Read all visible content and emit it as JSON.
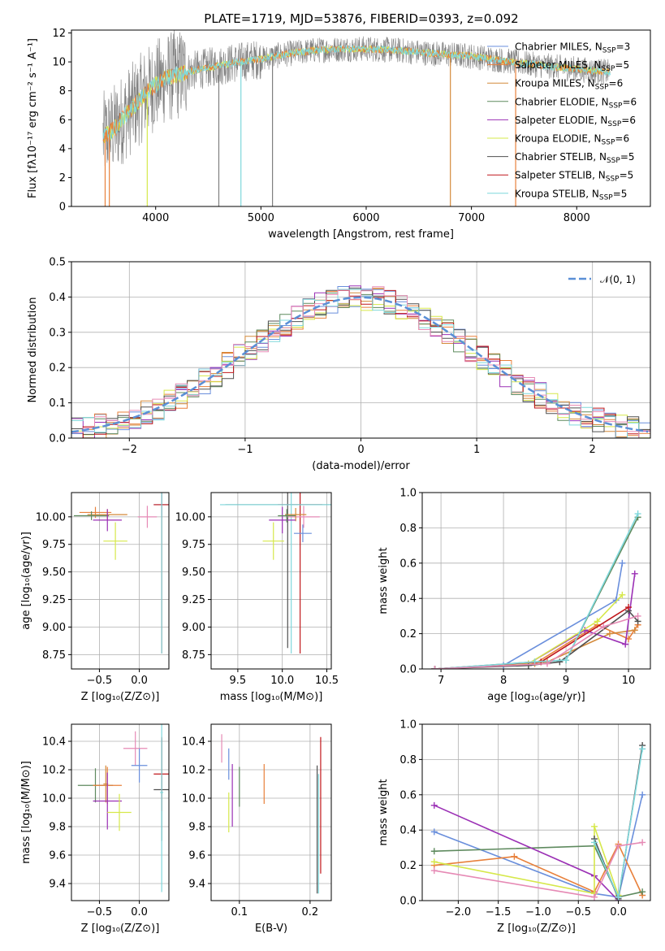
{
  "title": "PLATE=1719, MJD=53876, FIBERID=0393, z=0.092",
  "colors": {
    "chabrier_miles": "#6a8fdc",
    "salpeter_miles": "#e8803b",
    "kroupa_miles": "#d48a3a",
    "chabrier_elodie": "#5e8a5e",
    "salpeter_elodie": "#9b30b5",
    "kroupa_elodie": "#d6e84a",
    "chabrier_stelib": "#505050",
    "salpeter_stelib": "#c0171b",
    "kroupa_stelib": "#7fd8dc",
    "pink": "#e68ab5",
    "data": "#808080"
  },
  "legend": [
    {
      "label": "Chabrier MILES, N",
      "sub": "SSP",
      "tail": "=3",
      "color": "#6a8fdc"
    },
    {
      "label": "Salpeter MILES, N",
      "sub": "SSP",
      "tail": "=5",
      "color": "#e8803b"
    },
    {
      "label": "Kroupa MILES, N",
      "sub": "SSP",
      "tail": "=6",
      "color": "#d48a3a"
    },
    {
      "label": "Chabrier ELODIE, N",
      "sub": "SSP",
      "tail": "=6",
      "color": "#5e8a5e"
    },
    {
      "label": "Salpeter ELODIE, N",
      "sub": "SSP",
      "tail": "=6",
      "color": "#9b30b5"
    },
    {
      "label": "Kroupa ELODIE, N",
      "sub": "SSP",
      "tail": "=6",
      "color": "#d6e84a"
    },
    {
      "label": "Chabrier STELIB, N",
      "sub": "SSP",
      "tail": "=5",
      "color": "#505050"
    },
    {
      "label": "Salpeter STELIB, N",
      "sub": "SSP",
      "tail": "=5",
      "color": "#c0171b"
    },
    {
      "label": "Kroupa STELIB, N",
      "sub": "SSP",
      "tail": "=5",
      "color": "#7fd8dc"
    }
  ],
  "chart_data": [
    {
      "type": "line",
      "xlabel": "wavelength [Angstrom, rest frame]",
      "ylabel": "Flux [fλ10⁻¹⁷ erg cm⁻² s⁻¹ A⁻¹]",
      "xlim": [
        3200,
        8700
      ],
      "ylim": [
        0,
        12.2
      ],
      "xticks": [
        4000,
        5000,
        6000,
        7000,
        8000
      ],
      "yticks": [
        0,
        2,
        4,
        6,
        8,
        10,
        12
      ],
      "continuum": [
        [
          3500,
          4.8
        ],
        [
          3600,
          5.3
        ],
        [
          3700,
          6.2
        ],
        [
          3800,
          7.0
        ],
        [
          3900,
          7.8
        ],
        [
          4000,
          8.4
        ],
        [
          4100,
          8.9
        ],
        [
          4300,
          9.3
        ],
        [
          4500,
          9.6
        ],
        [
          4800,
          10.0
        ],
        [
          5000,
          10.2
        ],
        [
          5200,
          10.5
        ],
        [
          5500,
          10.8
        ],
        [
          5800,
          10.9
        ],
        [
          6000,
          10.9
        ],
        [
          6300,
          10.8
        ],
        [
          6600,
          10.6
        ],
        [
          7000,
          10.4
        ],
        [
          7300,
          10.1
        ],
        [
          7600,
          9.8
        ],
        [
          8000,
          9.5
        ],
        [
          8300,
          9.3
        ]
      ],
      "vertical_spikes": [
        3520,
        3560,
        3920,
        4600,
        4810,
        5110,
        6800,
        7420
      ]
    },
    {
      "type": "histogram",
      "xlabel": "(data-model)/error",
      "ylabel": "Normed distribution",
      "xlim": [
        -2.5,
        2.5
      ],
      "ylim": [
        0,
        0.5
      ],
      "xticks": [
        -2,
        -1,
        0,
        1,
        2
      ],
      "yticks": [
        0.0,
        0.1,
        0.2,
        0.3,
        0.4,
        0.5
      ],
      "legend": "𝒩(0, 1)",
      "gaussian": {
        "mean": 0,
        "sigma": 1
      },
      "bin_width": 0.1
    },
    {
      "type": "scatter",
      "xlabel": "Z [log₁₀(Z/Z⊙)]",
      "ylabel": "age  [log₁₀(age/yr)]",
      "xlim": [
        -0.85,
        0.37
      ],
      "ylim": [
        8.62,
        10.22
      ],
      "xticks": [
        -0.5,
        0.0
      ],
      "yticks": [
        8.75,
        9.0,
        9.25,
        9.5,
        9.75,
        10.0
      ],
      "points": [
        {
          "x": 0.28,
          "y": 10.11,
          "xerr": 0.1,
          "yerr": 0.1,
          "color": "#6a8fdc"
        },
        {
          "x": -0.55,
          "y": 10.04,
          "xerr": 0.2,
          "yerr": 0.05,
          "color": "#e8803b"
        },
        {
          "x": -0.4,
          "y": 10.02,
          "xerr": 0.25,
          "yerr": 0.05,
          "color": "#d48a3a"
        },
        {
          "x": -0.6,
          "y": 10.01,
          "xerr": 0.22,
          "yerr": 0.04,
          "color": "#5e8a5e"
        },
        {
          "x": -0.4,
          "y": 9.97,
          "xerr": 0.18,
          "yerr": 0.1,
          "color": "#9b30b5"
        },
        {
          "x": -0.3,
          "y": 9.78,
          "xerr": 0.15,
          "yerr": 0.17,
          "color": "#d6e84a"
        },
        {
          "x": 0.28,
          "y": 10.11,
          "xerr": 0.01,
          "yerr": 0.0,
          "color": "#505050"
        },
        {
          "x": 0.28,
          "y": 10.11,
          "xerr": 0.1,
          "yerr": 1.35,
          "color": "#c0171b"
        },
        {
          "x": 0.28,
          "y": 10.11,
          "xerr": 0.0,
          "yerr": 1.35,
          "color": "#7fd8dc"
        },
        {
          "x": 0.1,
          "y": 10.0,
          "xerr": 0.12,
          "yerr": 0.1,
          "color": "#e68ab5"
        }
      ]
    },
    {
      "type": "scatter",
      "xlabel": "mass [log₁₀(M/M⊙)]",
      "ylabel": "",
      "xlim": [
        9.2,
        10.55
      ],
      "ylim": [
        8.62,
        10.22
      ],
      "xticks": [
        9.5,
        10.0,
        10.5
      ],
      "yticks": [
        8.75,
        9.0,
        9.25,
        9.5,
        9.75,
        10.0
      ],
      "points": [
        {
          "x": 10.06,
          "y": 10.11,
          "xerr": 0.7,
          "yerr": 1.3,
          "color": "#505050"
        },
        {
          "x": 10.2,
          "y": 10.11,
          "xerr": 0.25,
          "yerr": 1.35,
          "color": "#c0171b"
        },
        {
          "x": 10.1,
          "y": 10.11,
          "xerr": 0.8,
          "yerr": 1.35,
          "color": "#7fd8dc"
        },
        {
          "x": 10.24,
          "y": 10.0,
          "xerr": 0.18,
          "yerr": 0.1,
          "color": "#e68ab5"
        },
        {
          "x": 10.15,
          "y": 10.02,
          "xerr": 0.12,
          "yerr": 0.06,
          "color": "#d48a3a"
        },
        {
          "x": 10.23,
          "y": 9.85,
          "xerr": 0.1,
          "yerr": 0.08,
          "color": "#6a8fdc"
        },
        {
          "x": 10.0,
          "y": 9.97,
          "xerr": 0.15,
          "yerr": 0.12,
          "color": "#9b30b5"
        },
        {
          "x": 9.9,
          "y": 9.78,
          "xerr": 0.12,
          "yerr": 0.17,
          "color": "#d6e84a"
        },
        {
          "x": 10.05,
          "y": 10.01,
          "xerr": 0.1,
          "yerr": 0.06,
          "color": "#5e8a5e"
        }
      ]
    },
    {
      "type": "line",
      "xlabel": "age  [log₁₀(age/yr)]",
      "ylabel": "mass weight",
      "xlim": [
        6.7,
        10.35
      ],
      "ylim": [
        0,
        1
      ],
      "xticks": [
        7,
        8,
        9,
        10
      ],
      "yticks": [
        0.0,
        0.2,
        0.4,
        0.6,
        0.8,
        1.0
      ],
      "series": [
        {
          "color": "#6a8fdc",
          "points": [
            [
              6.9,
              0.0
            ],
            [
              8.0,
              0.02
            ],
            [
              9.8,
              0.39
            ],
            [
              9.9,
              0.6
            ]
          ]
        },
        {
          "color": "#e8803b",
          "points": [
            [
              6.9,
              0.0
            ],
            [
              8.5,
              0.03
            ],
            [
              9.5,
              0.25
            ],
            [
              10.0,
              0.17
            ],
            [
              10.15,
              0.25
            ]
          ]
        },
        {
          "color": "#d48a3a",
          "points": [
            [
              6.9,
              0.0
            ],
            [
              8.7,
              0.04
            ],
            [
              9.7,
              0.2
            ],
            [
              10.1,
              0.22
            ]
          ]
        },
        {
          "color": "#5e8a5e",
          "points": [
            [
              6.9,
              0.0
            ],
            [
              8.5,
              0.04
            ],
            [
              9.0,
              0.05
            ],
            [
              10.15,
              0.86
            ]
          ]
        },
        {
          "color": "#9b30b5",
          "points": [
            [
              6.9,
              0.0
            ],
            [
              8.4,
              0.03
            ],
            [
              9.3,
              0.22
            ],
            [
              9.95,
              0.14
            ],
            [
              10.1,
              0.54
            ]
          ]
        },
        {
          "color": "#d6e84a",
          "points": [
            [
              6.9,
              0.0
            ],
            [
              8.4,
              0.03
            ],
            [
              9.5,
              0.27
            ],
            [
              9.9,
              0.42
            ]
          ]
        },
        {
          "color": "#505050",
          "points": [
            [
              6.9,
              0.0
            ],
            [
              8.4,
              0.02
            ],
            [
              8.9,
              0.04
            ],
            [
              10.0,
              0.33
            ],
            [
              10.15,
              0.27
            ]
          ]
        },
        {
          "color": "#c0171b",
          "points": [
            [
              6.9,
              0.0
            ],
            [
              8.6,
              0.04
            ],
            [
              10.0,
              0.35
            ]
          ]
        },
        {
          "color": "#7fd8dc",
          "points": [
            [
              6.9,
              0.0
            ],
            [
              8.5,
              0.04
            ],
            [
              9.0,
              0.05
            ],
            [
              10.15,
              0.88
            ]
          ]
        },
        {
          "color": "#e68ab5",
          "points": [
            [
              6.9,
              0.0
            ],
            [
              8.7,
              0.03
            ],
            [
              9.6,
              0.24
            ],
            [
              10.15,
              0.3
            ]
          ]
        }
      ]
    },
    {
      "type": "scatter",
      "xlabel": "Z [log₁₀(Z/Z⊙)]",
      "ylabel": "mass [log₁₀(M/M⊙)]",
      "xlim": [
        -0.85,
        0.37
      ],
      "ylim": [
        9.28,
        10.52
      ],
      "xticks": [
        -0.5,
        0.0
      ],
      "yticks": [
        9.4,
        9.6,
        9.8,
        10.0,
        10.2,
        10.4
      ],
      "points": [
        {
          "x": 0.28,
          "y": 10.06,
          "xerr": 0.1,
          "yerr": 0.36,
          "color": "#505050"
        },
        {
          "x": 0.28,
          "y": 10.17,
          "xerr": 0.1,
          "yerr": 0.26,
          "color": "#c0171b"
        },
        {
          "x": 0.28,
          "y": 10.04,
          "xerr": 0.02,
          "yerr": 0.7,
          "color": "#7fd8dc"
        },
        {
          "x": -0.55,
          "y": 10.09,
          "xerr": 0.22,
          "yerr": 0.12,
          "color": "#5e8a5e"
        },
        {
          "x": -0.4,
          "y": 10.09,
          "xerr": 0.18,
          "yerr": 0.13,
          "color": "#e8803b"
        },
        {
          "x": -0.42,
          "y": 10.1,
          "xerr": 0.03,
          "yerr": 0.13,
          "color": "#d48a3a"
        },
        {
          "x": -0.4,
          "y": 9.98,
          "xerr": 0.18,
          "yerr": 0.2,
          "color": "#9b30b5"
        },
        {
          "x": -0.25,
          "y": 9.9,
          "xerr": 0.15,
          "yerr": 0.13,
          "color": "#d6e84a"
        },
        {
          "x": -0.05,
          "y": 10.35,
          "xerr": 0.15,
          "yerr": 0.12,
          "color": "#e68ab5"
        },
        {
          "x": 0.0,
          "y": 10.23,
          "xerr": 0.1,
          "yerr": 0.12,
          "color": "#6a8fdc"
        }
      ]
    },
    {
      "type": "scatter",
      "xlabel": "E(B-V)",
      "ylabel": "",
      "xlim": [
        0.06,
        0.23
      ],
      "ylim": [
        9.28,
        10.52
      ],
      "xticks": [
        0.1,
        0.2
      ],
      "yticks": [
        9.4,
        9.6,
        9.8,
        10.0,
        10.2,
        10.4
      ],
      "points": [
        {
          "x": 0.075,
          "y": 10.35,
          "yerr": 0.1,
          "color": "#e68ab5"
        },
        {
          "x": 0.085,
          "y": 10.24,
          "yerr": 0.11,
          "color": "#6a8fdc"
        },
        {
          "x": 0.085,
          "y": 9.9,
          "yerr": 0.14,
          "color": "#d6e84a"
        },
        {
          "x": 0.09,
          "y": 10.02,
          "yerr": 0.22,
          "color": "#9b30b5"
        },
        {
          "x": 0.1,
          "y": 10.08,
          "yerr": 0.14,
          "color": "#5e8a5e"
        },
        {
          "x": 0.135,
          "y": 10.1,
          "yerr": 0.14,
          "color": "#e8803b"
        },
        {
          "x": 0.21,
          "y": 9.78,
          "yerr": 0.45,
          "color": "#505050"
        },
        {
          "x": 0.212,
          "y": 9.75,
          "yerr": 0.42,
          "color": "#7fd8dc"
        },
        {
          "x": 0.215,
          "y": 9.95,
          "yerr": 0.48,
          "color": "#c0171b"
        }
      ]
    },
    {
      "type": "line",
      "xlabel": "Z [log₁₀(Z/Z⊙)]",
      "ylabel": "mass weight",
      "xlim": [
        -2.45,
        0.4
      ],
      "ylim": [
        0,
        1
      ],
      "xticks": [
        -2.0,
        -1.5,
        -1.0,
        -0.5,
        0.0
      ],
      "yticks": [
        0.0,
        0.2,
        0.4,
        0.6,
        0.8,
        1.0
      ],
      "series": [
        {
          "color": "#6a8fdc",
          "points": [
            [
              -2.3,
              0.39
            ],
            [
              -0.3,
              0.04
            ],
            [
              0.0,
              0.02
            ],
            [
              0.3,
              0.6
            ]
          ]
        },
        {
          "color": "#e8803b",
          "points": [
            [
              -2.3,
              0.2
            ],
            [
              -1.3,
              0.25
            ],
            [
              -0.3,
              0.05
            ],
            [
              0.0,
              0.32
            ],
            [
              0.3,
              0.03
            ]
          ]
        },
        {
          "color": "#5e8a5e",
          "points": [
            [
              -2.3,
              0.28
            ],
            [
              -0.3,
              0.31
            ],
            [
              0.0,
              0.02
            ],
            [
              0.3,
              0.05
            ]
          ]
        },
        {
          "color": "#9b30b5",
          "points": [
            [
              -2.3,
              0.54
            ],
            [
              -0.3,
              0.14
            ],
            [
              0.0,
              0.0
            ]
          ]
        },
        {
          "color": "#d6e84a",
          "points": [
            [
              -2.3,
              0.22
            ],
            [
              -0.3,
              0.04
            ],
            [
              -0.3,
              0.42
            ],
            [
              0.0,
              0.03
            ]
          ]
        },
        {
          "color": "#505050",
          "points": [
            [
              -0.3,
              0.35
            ],
            [
              0.0,
              0.01
            ],
            [
              0.3,
              0.88
            ]
          ]
        },
        {
          "color": "#7fd8dc",
          "points": [
            [
              -0.3,
              0.33
            ],
            [
              0.0,
              0.02
            ],
            [
              0.3,
              0.86
            ]
          ]
        },
        {
          "color": "#e68ab5",
          "points": [
            [
              -2.3,
              0.17
            ],
            [
              -0.3,
              0.02
            ],
            [
              0.0,
              0.31
            ],
            [
              0.3,
              0.33
            ]
          ]
        }
      ]
    }
  ]
}
